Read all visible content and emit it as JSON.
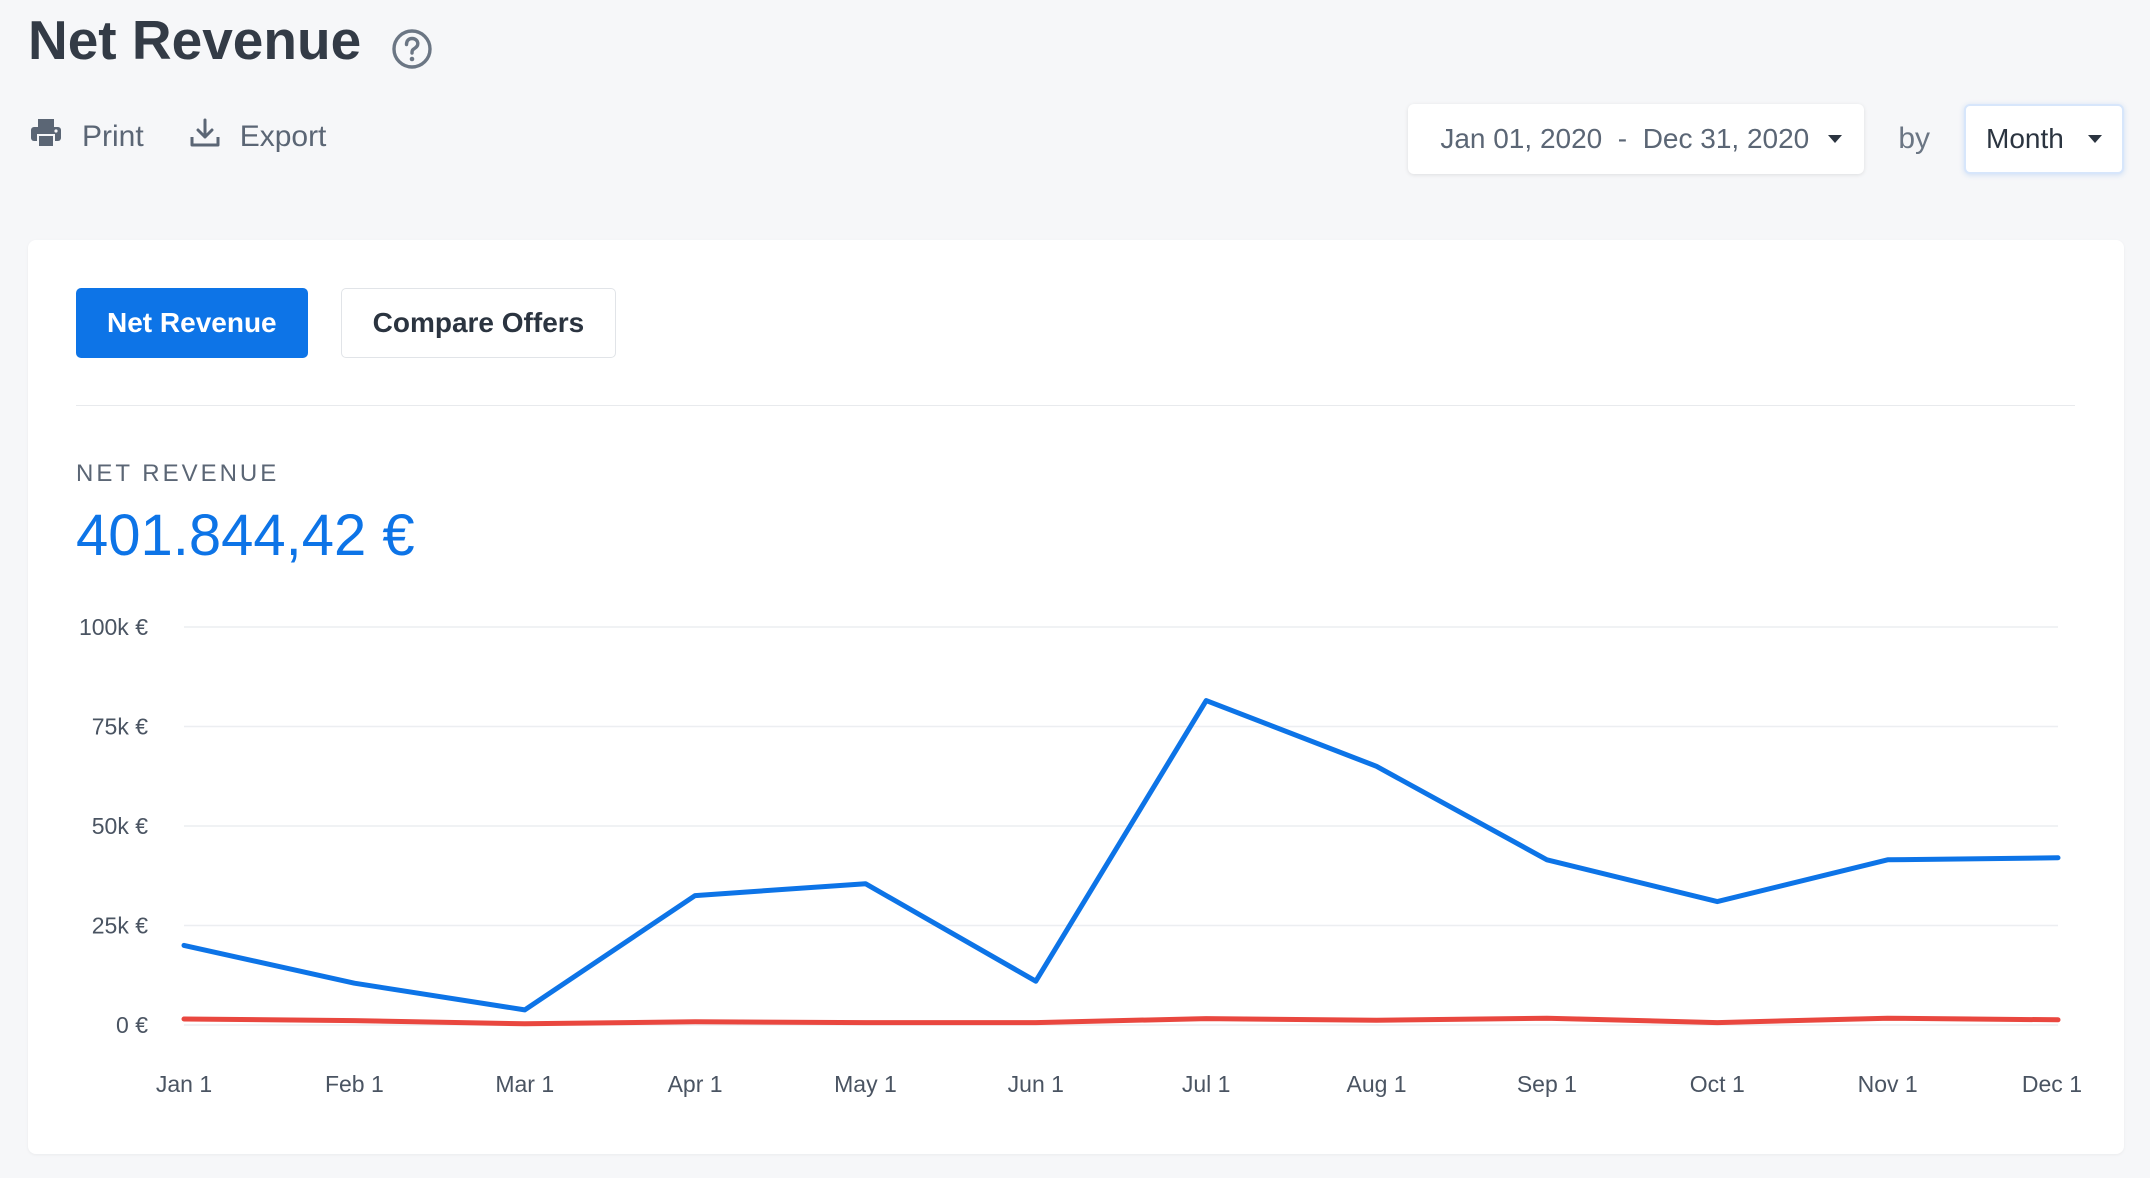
{
  "header": {
    "title": "Net Revenue",
    "help_icon": "question-circle-icon"
  },
  "toolbar": {
    "print_label": "Print",
    "export_label": "Export",
    "date_range_start": "Jan 01, 2020",
    "date_range_separator": "-",
    "date_range_end": "Dec 31, 2020",
    "by_label": "by",
    "period_value": "Month"
  },
  "tabs": [
    {
      "label": "Net Revenue",
      "active": true
    },
    {
      "label": "Compare Offers",
      "active": false
    }
  ],
  "metric": {
    "label": "NET REVENUE",
    "value": "401.844,42 €"
  },
  "colors": {
    "accent": "#0d74e7",
    "series_red": "#e9473f"
  },
  "chart_data": {
    "type": "line",
    "categories": [
      "Jan 1",
      "Feb 1",
      "Mar 1",
      "Apr 1",
      "May 1",
      "Jun 1",
      "Jul 1",
      "Aug 1",
      "Sep 1",
      "Oct 1",
      "Nov 1",
      "Dec 1"
    ],
    "y_ticks": [
      "0 €",
      "25k €",
      "50k €",
      "75k €",
      "100k €"
    ],
    "ylim": [
      0,
      100000
    ],
    "grid": true,
    "series": [
      {
        "color": "#0d74e7",
        "values": [
          20000,
          10500,
          3800,
          32500,
          35500,
          11000,
          81500,
          65000,
          41500,
          31000,
          41500,
          42000
        ]
      },
      {
        "color": "#e9473f",
        "values": [
          1500,
          1100,
          300,
          800,
          600,
          600,
          1600,
          1200,
          1700,
          600,
          1700,
          1300
        ]
      }
    ]
  }
}
